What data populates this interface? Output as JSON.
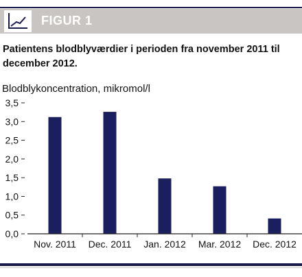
{
  "figure": {
    "label": "FIGUR 1",
    "caption": "Patientens blodblyværdier i perioden fra november 2011 til december 2012.",
    "colors": {
      "accent": "#1a1a4a",
      "header_bg": "#c9c5c2",
      "bar": "#1c1f5e"
    }
  },
  "chart_data": {
    "type": "bar",
    "title": "",
    "ylabel": "Blodblykoncentration, mikromol/l",
    "xlabel": "",
    "categories": [
      "Nov. 2011",
      "Dec. 2011",
      "Jan. 2012",
      "Mar. 2012",
      "Dec. 2012"
    ],
    "values": [
      3.12,
      3.26,
      1.48,
      1.27,
      0.41
    ],
    "ylim": [
      0,
      3.5
    ],
    "yticks": [
      "0,0",
      "0,5",
      "1,0",
      "1,5",
      "2,0",
      "2,5",
      "3,0",
      "3,5"
    ],
    "grid": false,
    "legend": "none"
  }
}
